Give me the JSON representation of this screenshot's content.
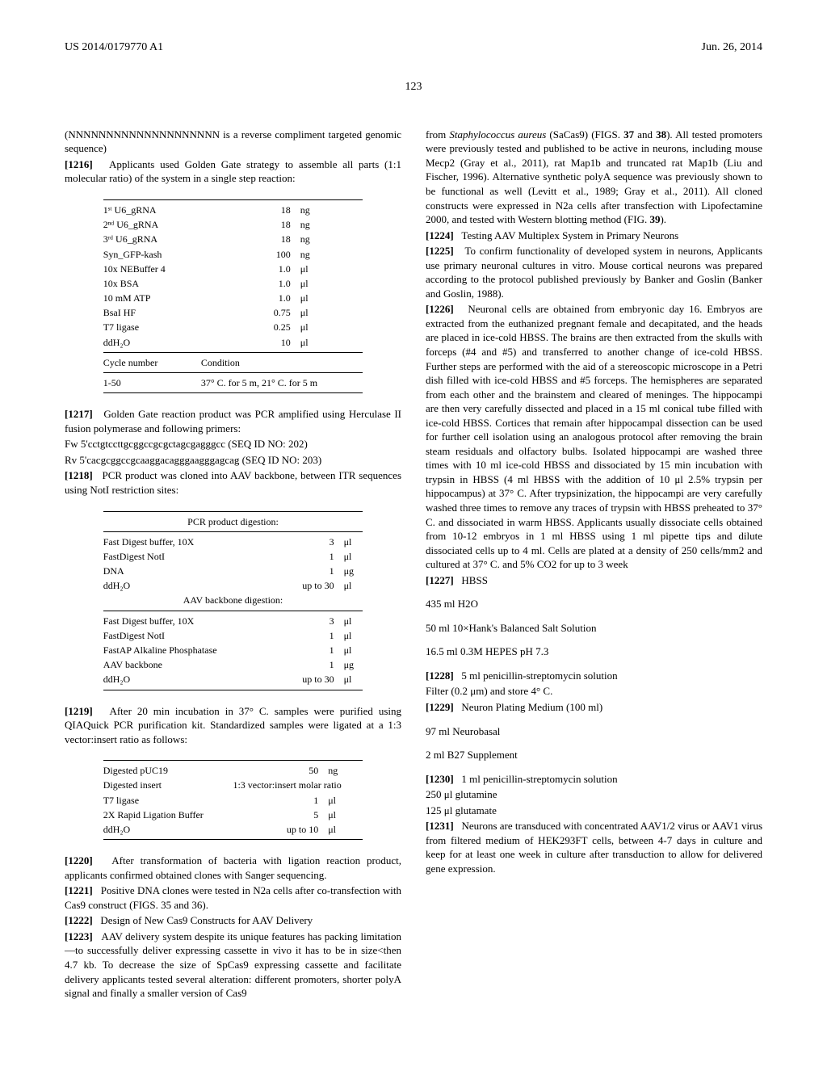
{
  "header": {
    "patent_number": "US 2014/0179770 A1",
    "date": "Jun. 26, 2014",
    "page_number": "123"
  },
  "left": {
    "intro_line_1": "(NNNNNNNNNNNNNNNNNNNN is a reverse compliment targeted genomic sequence)",
    "p1216": "Applicants used Golden Gate strategy to assemble all parts (1:1 molecular ratio) of the system in a single step reaction:",
    "table1": {
      "rows": [
        [
          "1ˢᵗ U6_gRNA",
          "18",
          "ng"
        ],
        [
          "2ⁿᵈ U6_gRNA",
          "18",
          "ng"
        ],
        [
          "3ʳᵈ U6_gRNA",
          "18",
          "ng"
        ],
        [
          "Syn_GFP-kash",
          "100",
          "ng"
        ],
        [
          "10x NEBuffer 4",
          "1.0",
          "μl"
        ],
        [
          "10x BSA",
          "1.0",
          "μl"
        ],
        [
          "10 mM ATP",
          "1.0",
          "μl"
        ],
        [
          "BsaI HF",
          "0.75",
          "μl"
        ],
        [
          "T7 ligase",
          "0.25",
          "μl"
        ],
        [
          "ddH₂O",
          "10",
          "μl"
        ]
      ],
      "cycle_header_left": "Cycle number",
      "cycle_header_right": "Condition",
      "cycle_value_left": "1-50",
      "cycle_value_right": "37° C. for 5 m, 21° C. for 5 m"
    },
    "p1217": "Golden Gate reaction product was PCR amplified using Herculase II fusion polymerase and following primers:",
    "primer_fw": "Fw 5'cctgtccttgcggccgcgctagcgagggcc (SEQ ID NO: 202)",
    "primer_rv": "Rv 5'cacgcggccgcaaggacagggaagggagcag (SEQ ID NO: 203)",
    "p1218": "PCR product was cloned into AAV backbone, between ITR sequences using NotI restriction sites:",
    "table2_header1": "PCR product digestion:",
    "table2_rows1": [
      [
        "Fast Digest buffer, 10X",
        "3",
        "μl"
      ],
      [
        "FastDigest NotI",
        "1",
        "μl"
      ],
      [
        "DNA",
        "1",
        "μg"
      ],
      [
        "ddH₂O",
        "up to 30",
        "μl"
      ]
    ],
    "table2_header2": "AAV backbone digestion:",
    "table2_rows2": [
      [
        "Fast Digest buffer, 10X",
        "3",
        "μl"
      ],
      [
        "FastDigest NotI",
        "1",
        "μl"
      ],
      [
        "FastAP Alkaline Phosphatase",
        "1",
        "μl"
      ],
      [
        "AAV backbone",
        "1",
        "μg"
      ],
      [
        "ddH₂O",
        "up to 30",
        "μl"
      ]
    ],
    "p1219": "After 20 min incubation in 37° C. samples were purified using QIAQuick PCR purification kit. Standardized samples were ligated at a 1:3 vector:insert ratio as follows:",
    "table3_rows": [
      [
        "Digested pUC19",
        "50",
        "ng"
      ],
      [
        "Digested insert",
        "1:3 vector:insert molar ratio",
        ""
      ],
      [
        "T7 ligase",
        "1",
        "μl"
      ],
      [
        "2X Rapid Ligation Buffer",
        "5",
        "μl"
      ],
      [
        "ddH₂O",
        "up to 10",
        "μl"
      ]
    ],
    "p1220": "After transformation of bacteria with ligation reaction product, applicants confirmed obtained clones with Sanger sequencing.",
    "p1221": "Positive DNA clones were tested in N2a cells after co-transfection with Cas9 construct (FIGS. 35 and 36).",
    "p1222": "Design of New Cas9 Constructs for AAV Delivery",
    "p1223": "AAV delivery system despite its unique features has packing limitation—to successfully deliver expressing cassette in vivo it has to be in size<then 4.7 kb. To decrease the size of SpCas9 expressing cassette and facilitate delivery applicants tested several alteration: different promoters, shorter polyA signal and finally a smaller version of Cas9"
  },
  "right": {
    "cont1223": "from Staphylococcus aureus (SaCas9) (FIGS. 37 and 38). All tested promoters were previously tested and published to be active in neurons, including mouse Mecp2 (Gray et al., 2011), rat Map1b and truncated rat Map1b (Liu and Fischer, 1996). Alternative synthetic polyA sequence was previously shown to be functional as well (Levitt et al., 1989; Gray et al., 2011). All cloned constructs were expressed in N2a cells after transfection with Lipofectamine 2000, and tested with Western blotting method (FIG. 39).",
    "p1224": "Testing AAV Multiplex System in Primary Neurons",
    "p1225": "To confirm functionality of developed system in neurons, Applicants use primary neuronal cultures in vitro. Mouse cortical neurons was prepared according to the protocol published previously by Banker and Goslin (Banker and Goslin, 1988).",
    "p1226": "Neuronal cells are obtained from embryonic day 16. Embryos are extracted from the euthanized pregnant female and decapitated, and the heads are placed in ice-cold HBSS. The brains are then extracted from the skulls with forceps (#4 and #5) and transferred to another change of ice-cold HBSS. Further steps are performed with the aid of a stereoscopic microscope in a Petri dish filled with ice-cold HBSS and #5 forceps. The hemispheres are separated from each other and the brainstem and cleared of meninges. The hippocampi are then very carefully dissected and placed in a 15 ml conical tube filled with ice-cold HBSS. Cortices that remain after hippocampal dissection can be used for further cell isolation using an analogous protocol after removing the brain steam residuals and olfactory bulbs. Isolated hippocampi are washed three times with 10 ml ice-cold HBSS and dissociated by 15 min incubation with trypsin in HBSS (4 ml HBSS with the addition of 10 μl 2.5% trypsin per hippocampus) at 37° C. After trypsinization, the hippocampi are very carefully washed three times to remove any traces of trypsin with HBSS preheated to 37° C. and dissociated in warm HBSS. Applicants usually dissociate cells obtained from 10-12 embryos in 1 ml HBSS using 1 ml pipette tips and dilute dissociated cells up to 4 ml. Cells are plated at a density of 250 cells/mm2 and cultured at 37° C. and 5% CO2 for up to 3 week",
    "p1227": "HBSS",
    "hbss_1": "435 ml H2O",
    "hbss_2": "50 ml 10×Hank's Balanced Salt Solution",
    "hbss_3": "16.5 ml 0.3M HEPES pH 7.3",
    "p1228": "5 ml penicillin-streptomycin solution",
    "filter_line": "Filter (0.2 μm) and store 4° C.",
    "p1229": "Neuron Plating Medium (100 ml)",
    "npm_1": "97 ml Neurobasal",
    "npm_2": "2 ml B27 Supplement",
    "p1230": "1 ml penicillin-streptomycin solution",
    "glutamine": "250 μl glutamine",
    "glutamate": "125 μl glutamate",
    "p1231": "Neurons are transduced with concentrated AAV1/2 virus or AAV1 virus from filtered medium of HEK293FT cells, between 4-7 days in culture and keep for at least one week in culture after transduction to allow for delivered gene expression."
  }
}
